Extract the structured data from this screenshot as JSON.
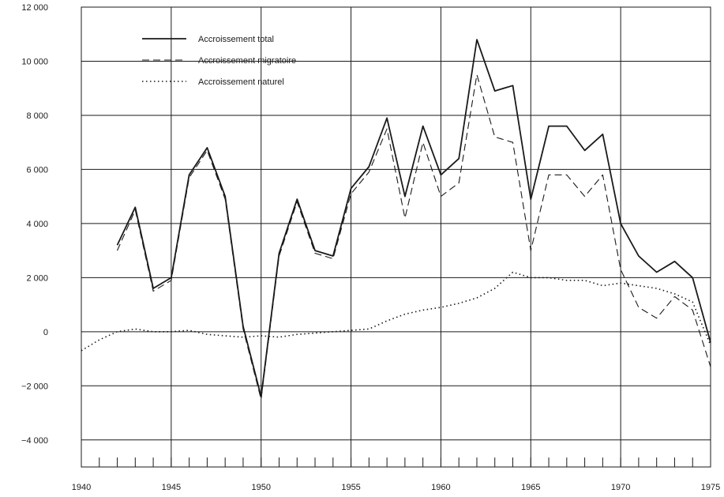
{
  "chart_data": {
    "type": "line",
    "x_ticks": [
      1940,
      1945,
      1950,
      1955,
      1960,
      1965,
      1970,
      1975
    ],
    "y_ticks": [
      12000,
      10000,
      8000,
      6000,
      4000,
      2000,
      0,
      -2000,
      -4000
    ],
    "y_tick_labels": [
      "12 000",
      "10 000",
      "8 000",
      "6 000",
      "4 000",
      "2 000",
      "0",
      "−2 000",
      "−4 000"
    ],
    "xlim": [
      1940,
      1975
    ],
    "ylim": [
      -5000,
      12000
    ],
    "grid": true,
    "legend_position": "top-left",
    "series": [
      {
        "name": "Accroissement total",
        "style": "solid",
        "x": [
          1942,
          1943,
          1944,
          1945,
          1946,
          1947,
          1948,
          1949,
          1950,
          1951,
          1952,
          1953,
          1954,
          1955,
          1956,
          1957,
          1958,
          1959,
          1960,
          1961,
          1962,
          1963,
          1964,
          1965,
          1966,
          1967,
          1968,
          1969,
          1970,
          1971,
          1972,
          1973,
          1974,
          1975
        ],
        "values": [
          3200,
          4600,
          1600,
          2000,
          5800,
          6800,
          5000,
          200,
          -2400,
          2900,
          4900,
          3000,
          2800,
          5300,
          6100,
          7900,
          5000,
          7600,
          5800,
          6400,
          10800,
          8900,
          9100,
          4900,
          7600,
          7600,
          6700,
          7300,
          4000,
          2800,
          2200,
          2600,
          2000,
          -400
        ]
      },
      {
        "name": "Accroissement migratoire",
        "style": "dashed",
        "x": [
          1942,
          1943,
          1944,
          1945,
          1946,
          1947,
          1948,
          1949,
          1950,
          1951,
          1952,
          1953,
          1954,
          1955,
          1956,
          1957,
          1958,
          1959,
          1960,
          1961,
          1962,
          1963,
          1964,
          1965,
          1966,
          1967,
          1968,
          1969,
          1970,
          1971,
          1972,
          1973,
          1974,
          1975
        ],
        "values": [
          3000,
          4500,
          1500,
          1900,
          5700,
          6700,
          4900,
          100,
          -2500,
          2800,
          4800,
          2900,
          2700,
          5100,
          5900,
          7500,
          4200,
          7000,
          5000,
          5500,
          9500,
          7200,
          7000,
          3000,
          5800,
          5800,
          5000,
          5800,
          2300,
          900,
          500,
          1300,
          800,
          -1300
        ]
      },
      {
        "name": "Accroissement naturel",
        "style": "dotted",
        "x": [
          1940,
          1941,
          1942,
          1943,
          1944,
          1945,
          1946,
          1947,
          1948,
          1949,
          1950,
          1951,
          1952,
          1953,
          1954,
          1955,
          1956,
          1957,
          1958,
          1959,
          1960,
          1961,
          1962,
          1963,
          1964,
          1965,
          1966,
          1967,
          1968,
          1969,
          1970,
          1971,
          1972,
          1973,
          1974,
          1975
        ],
        "values": [
          -700,
          -300,
          0,
          100,
          0,
          0,
          50,
          -100,
          -150,
          -200,
          -150,
          -200,
          -100,
          -50,
          0,
          50,
          100,
          400,
          650,
          800,
          900,
          1050,
          1250,
          1600,
          2200,
          2000,
          2000,
          1900,
          1900,
          1700,
          1800,
          1700,
          1600,
          1400,
          1100,
          -500
        ]
      }
    ]
  }
}
